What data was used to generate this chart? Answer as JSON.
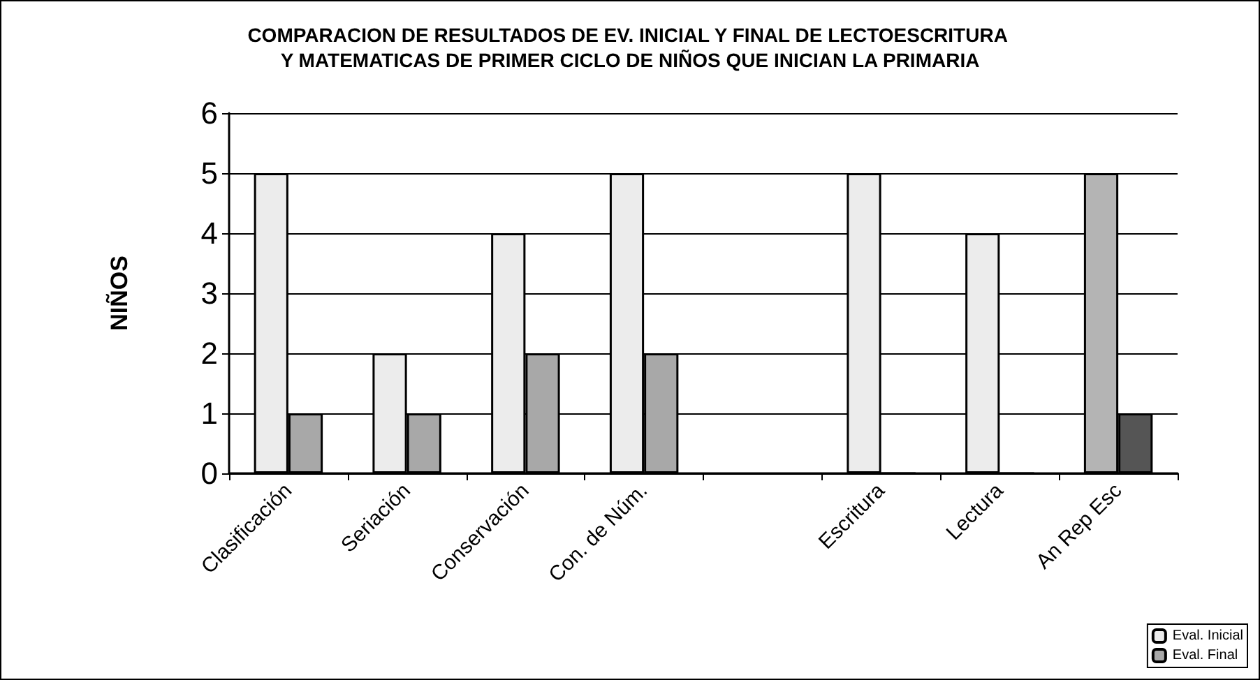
{
  "chart_data": {
    "type": "bar",
    "title": "COMPARACION DE RESULTADOS DE EV. INICIAL Y FINAL DE LECTOESCRITURA Y MATEMATICAS DE PRIMER CICLO DE NIÑOS QUE INICIAN LA PRIMARIA",
    "ylabel": "NIÑOS",
    "categories": [
      "Clasificación",
      "Seriación",
      "Conservación",
      "Con. de Núm.",
      null,
      "Escritura",
      "Lectura",
      "An Rep Esc"
    ],
    "series": [
      {
        "name": "Eval. Inicial",
        "color": "#ececec",
        "colors": [
          "#ececec",
          "#ececec",
          "#ececec",
          "#ececec",
          "#ececec",
          "#ececec",
          "#ececec",
          "#b4b4b4"
        ],
        "values": [
          5,
          2,
          4,
          5,
          null,
          5,
          4,
          5
        ]
      },
      {
        "name": "Eval. Final",
        "color": "#a8a8a8",
        "colors": [
          "#a8a8a8",
          "#a8a8a8",
          "#a8a8a8",
          "#a8a8a8",
          "#a8a8a8",
          "#a8a8a8",
          "#a8a8a8",
          "#555555"
        ],
        "values": [
          1,
          1,
          2,
          2,
          null,
          0,
          0,
          1
        ]
      }
    ],
    "ylim": [
      0,
      6
    ],
    "yticks": [
      0,
      1,
      2,
      3,
      4,
      5,
      6
    ],
    "grid": "y",
    "legend": "bottom right"
  }
}
